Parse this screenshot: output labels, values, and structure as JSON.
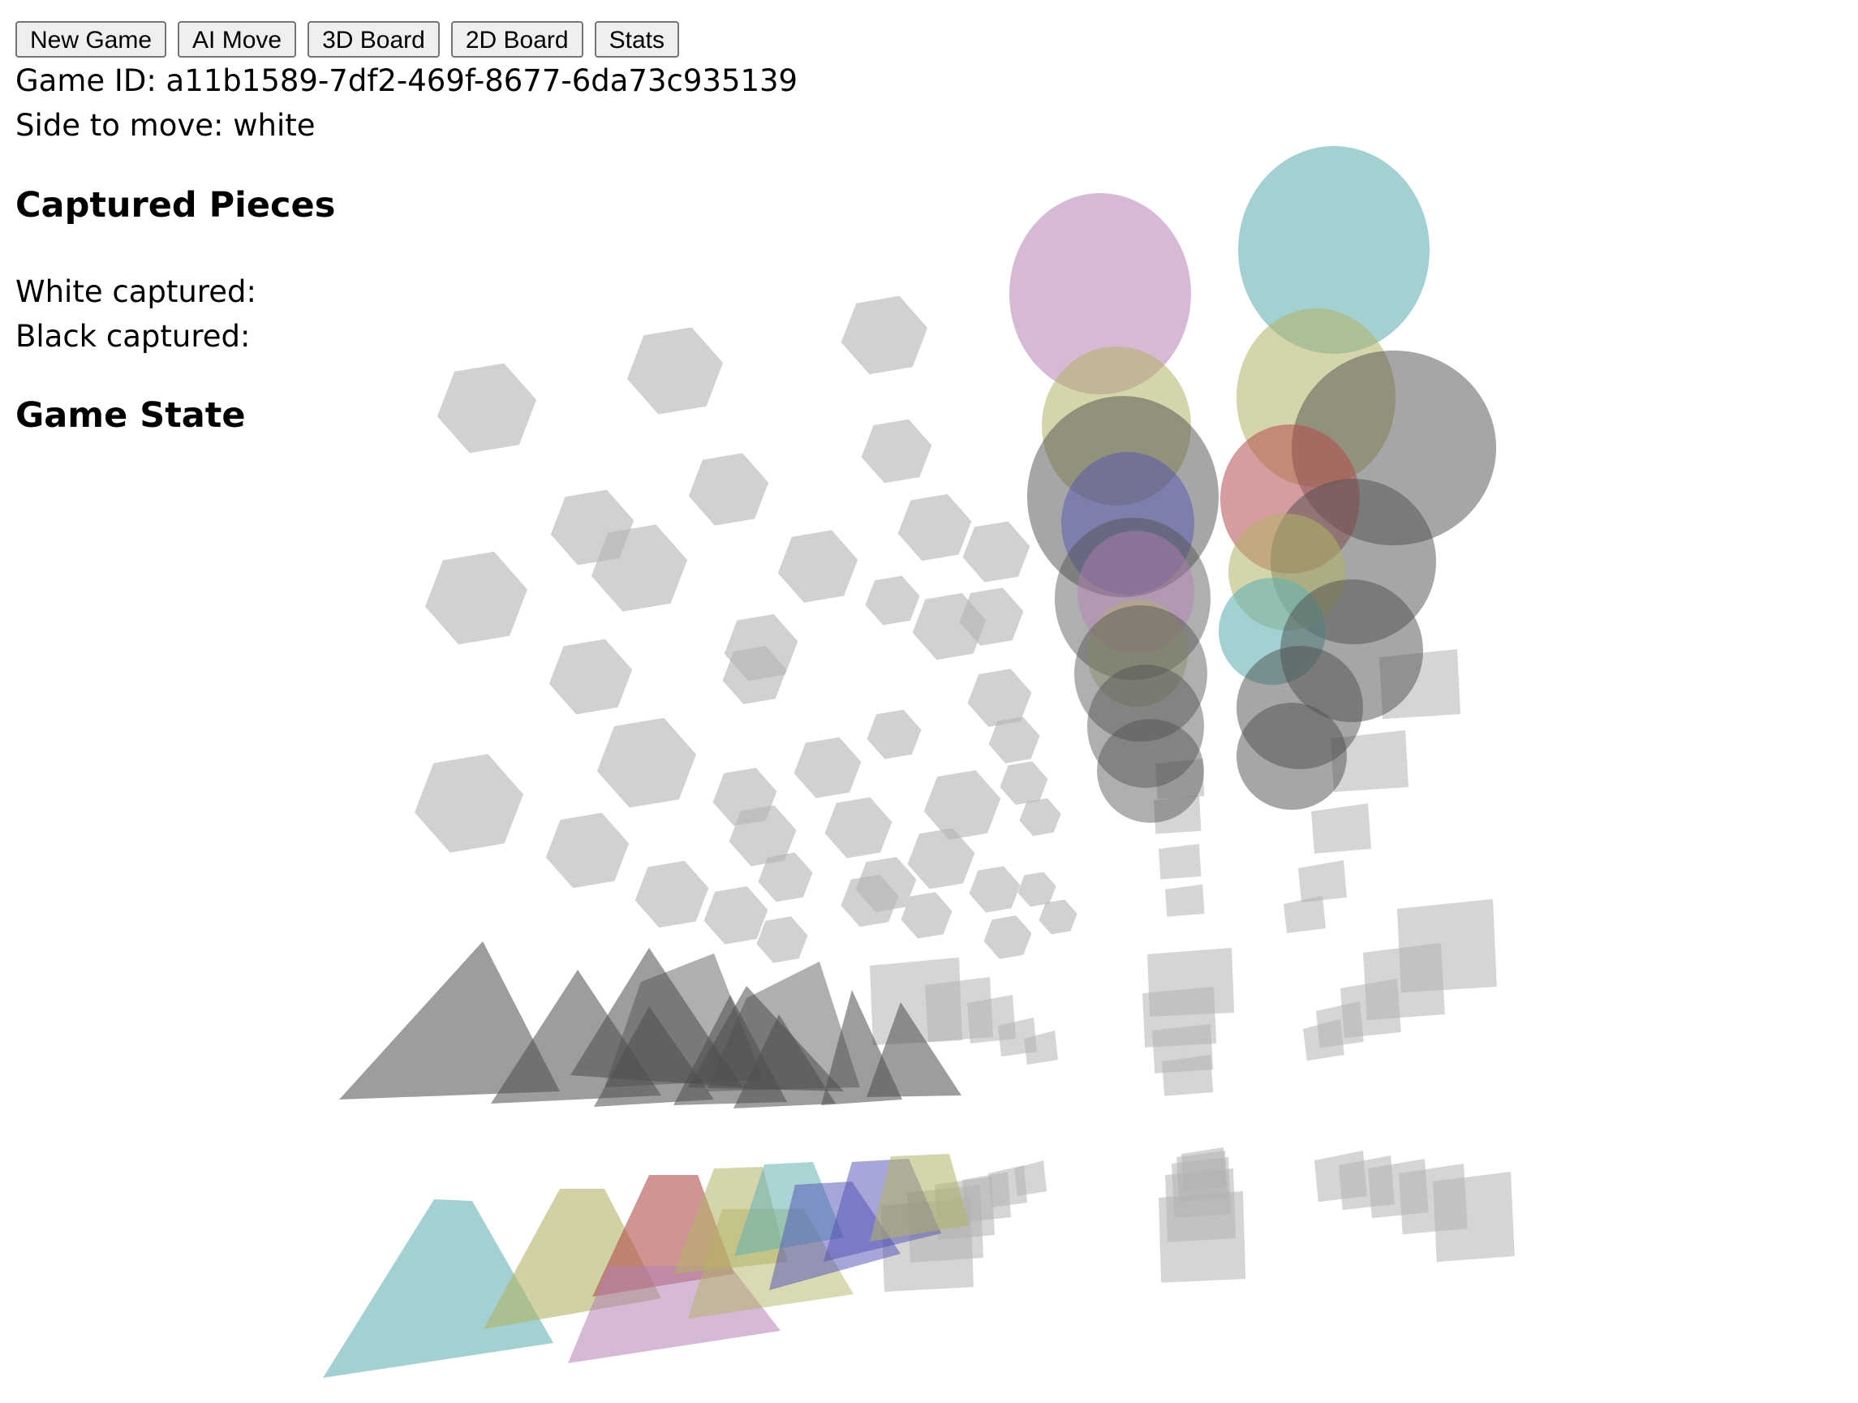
{
  "toolbar": {
    "new_game_label": "New Game",
    "ai_move_label": "AI Move",
    "board_3d_label": "3D Board",
    "board_2d_label": "2D Board",
    "stats_label": "Stats"
  },
  "game": {
    "id_label": "Game ID:",
    "id_value": "a11b1589-7df2-469f-8677-6da73c935139",
    "side_label": "Side to move:",
    "side_value": "white"
  },
  "captured": {
    "heading": "Captured Pieces",
    "white_label": "White captured:",
    "white_value": "",
    "black_label": "Black captured:",
    "black_value": ""
  },
  "state": {
    "heading": "Game State"
  },
  "board": {
    "view": "3d",
    "colors": {
      "empty": "#b3b3b3",
      "dark": "#4d4d4d",
      "teal": "#66b3b3",
      "olive": "#b3b366",
      "mauve": "#b380b3",
      "red": "#b34d4d",
      "blue": "#4d4db3"
    }
  }
}
